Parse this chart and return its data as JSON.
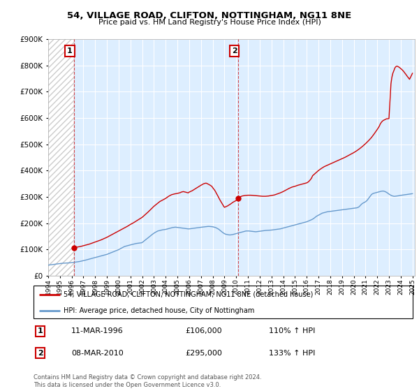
{
  "title": "54, VILLAGE ROAD, CLIFTON, NOTTINGHAM, NG11 8NE",
  "subtitle": "Price paid vs. HM Land Registry's House Price Index (HPI)",
  "legend_line1": "54, VILLAGE ROAD, CLIFTON, NOTTINGHAM, NG11 8NE (detached house)",
  "legend_line2": "HPI: Average price, detached house, City of Nottingham",
  "footnote": "Contains HM Land Registry data © Crown copyright and database right 2024.\nThis data is licensed under the Open Government Licence v3.0.",
  "annotation1_label": "1",
  "annotation1_date": "11-MAR-1996",
  "annotation1_price": "£106,000",
  "annotation1_hpi": "110% ↑ HPI",
  "annotation2_label": "2",
  "annotation2_date": "08-MAR-2010",
  "annotation2_price": "£295,000",
  "annotation2_hpi": "133% ↑ HPI",
  "property_color": "#cc0000",
  "hpi_color": "#6699cc",
  "hpi_fill_color": "#ddeeff",
  "hatch_color": "#cccccc",
  "ylim": [
    0,
    900000
  ],
  "yticks": [
    0,
    100000,
    200000,
    300000,
    400000,
    500000,
    600000,
    700000,
    800000,
    900000
  ],
  "xlim_start": 1994.0,
  "xlim_end": 2025.2,
  "sale1_x": 1996.17,
  "sale2_x": 2010.17,
  "sale1_y": 106000,
  "sale2_y": 295000,
  "hpi_x": [
    1994.0,
    1994.08,
    1994.17,
    1994.25,
    1994.33,
    1994.42,
    1994.5,
    1994.58,
    1994.67,
    1994.75,
    1994.83,
    1994.92,
    1995.0,
    1995.08,
    1995.17,
    1995.25,
    1995.33,
    1995.42,
    1995.5,
    1995.58,
    1995.67,
    1995.75,
    1995.83,
    1995.92,
    1996.0,
    1996.08,
    1996.17,
    1996.25,
    1996.33,
    1996.42,
    1996.5,
    1996.58,
    1996.67,
    1996.75,
    1996.83,
    1996.92,
    1997.0,
    1997.08,
    1997.17,
    1997.25,
    1997.33,
    1997.42,
    1997.5,
    1997.58,
    1997.67,
    1997.75,
    1997.83,
    1997.92,
    1998.0,
    1998.08,
    1998.17,
    1998.25,
    1998.33,
    1998.42,
    1998.5,
    1998.58,
    1998.67,
    1998.75,
    1998.83,
    1998.92,
    1999.0,
    1999.08,
    1999.17,
    1999.25,
    1999.33,
    1999.42,
    1999.5,
    1999.58,
    1999.67,
    1999.75,
    1999.83,
    1999.92,
    2000.0,
    2000.08,
    2000.17,
    2000.25,
    2000.33,
    2000.42,
    2000.5,
    2000.58,
    2000.67,
    2000.75,
    2000.83,
    2000.92,
    2001.0,
    2001.08,
    2001.17,
    2001.25,
    2001.33,
    2001.42,
    2001.5,
    2001.58,
    2001.67,
    2001.75,
    2001.83,
    2001.92,
    2002.0,
    2002.08,
    2002.17,
    2002.25,
    2002.33,
    2002.42,
    2002.5,
    2002.58,
    2002.67,
    2002.75,
    2002.83,
    2002.92,
    2003.0,
    2003.08,
    2003.17,
    2003.25,
    2003.33,
    2003.42,
    2003.5,
    2003.58,
    2003.67,
    2003.75,
    2003.83,
    2003.92,
    2004.0,
    2004.08,
    2004.17,
    2004.25,
    2004.33,
    2004.42,
    2004.5,
    2004.58,
    2004.67,
    2004.75,
    2004.83,
    2004.92,
    2005.0,
    2005.08,
    2005.17,
    2005.25,
    2005.33,
    2005.42,
    2005.5,
    2005.58,
    2005.67,
    2005.75,
    2005.83,
    2005.92,
    2006.0,
    2006.08,
    2006.17,
    2006.25,
    2006.33,
    2006.42,
    2006.5,
    2006.58,
    2006.67,
    2006.75,
    2006.83,
    2006.92,
    2007.0,
    2007.08,
    2007.17,
    2007.25,
    2007.33,
    2007.42,
    2007.5,
    2007.58,
    2007.67,
    2007.75,
    2007.83,
    2007.92,
    2008.0,
    2008.08,
    2008.17,
    2008.25,
    2008.33,
    2008.42,
    2008.5,
    2008.58,
    2008.67,
    2008.75,
    2008.83,
    2008.92,
    2009.0,
    2009.08,
    2009.17,
    2009.25,
    2009.33,
    2009.42,
    2009.5,
    2009.58,
    2009.67,
    2009.75,
    2009.83,
    2009.92,
    2010.0,
    2010.08,
    2010.17,
    2010.25,
    2010.33,
    2010.42,
    2010.5,
    2010.58,
    2010.67,
    2010.75,
    2010.83,
    2010.92,
    2011.0,
    2011.08,
    2011.17,
    2011.25,
    2011.33,
    2011.42,
    2011.5,
    2011.58,
    2011.67,
    2011.75,
    2011.83,
    2011.92,
    2012.0,
    2012.08,
    2012.17,
    2012.25,
    2012.33,
    2012.42,
    2012.5,
    2012.58,
    2012.67,
    2012.75,
    2012.83,
    2012.92,
    2013.0,
    2013.08,
    2013.17,
    2013.25,
    2013.33,
    2013.42,
    2013.5,
    2013.58,
    2013.67,
    2013.75,
    2013.83,
    2013.92,
    2014.0,
    2014.08,
    2014.17,
    2014.25,
    2014.33,
    2014.42,
    2014.5,
    2014.58,
    2014.67,
    2014.75,
    2014.83,
    2014.92,
    2015.0,
    2015.08,
    2015.17,
    2015.25,
    2015.33,
    2015.42,
    2015.5,
    2015.58,
    2015.67,
    2015.75,
    2015.83,
    2015.92,
    2016.0,
    2016.08,
    2016.17,
    2016.25,
    2016.33,
    2016.42,
    2016.5,
    2016.58,
    2016.67,
    2016.75,
    2016.83,
    2016.92,
    2017.0,
    2017.08,
    2017.17,
    2017.25,
    2017.33,
    2017.42,
    2017.5,
    2017.58,
    2017.67,
    2017.75,
    2017.83,
    2017.92,
    2018.0,
    2018.08,
    2018.17,
    2018.25,
    2018.33,
    2018.42,
    2018.5,
    2018.58,
    2018.67,
    2018.75,
    2018.83,
    2018.92,
    2019.0,
    2019.08,
    2019.17,
    2019.25,
    2019.33,
    2019.42,
    2019.5,
    2019.58,
    2019.67,
    2019.75,
    2019.83,
    2019.92,
    2020.0,
    2020.08,
    2020.17,
    2020.25,
    2020.33,
    2020.42,
    2020.5,
    2020.58,
    2020.67,
    2020.75,
    2020.83,
    2020.92,
    2021.0,
    2021.08,
    2021.17,
    2021.25,
    2021.33,
    2021.42,
    2021.5,
    2021.58,
    2021.67,
    2021.75,
    2021.83,
    2021.92,
    2022.0,
    2022.08,
    2022.17,
    2022.25,
    2022.33,
    2022.42,
    2022.5,
    2022.58,
    2022.67,
    2022.75,
    2022.83,
    2022.92,
    2023.0,
    2023.08,
    2023.17,
    2023.25,
    2023.33,
    2023.42,
    2023.5,
    2023.58,
    2023.67,
    2023.75,
    2023.83,
    2023.92,
    2024.0,
    2024.08,
    2024.17,
    2024.25,
    2024.33,
    2024.42,
    2024.5,
    2024.58,
    2024.67,
    2024.75,
    2024.83,
    2024.92,
    2025.0
  ],
  "hpi_y": [
    40000,
    40500,
    41000,
    41500,
    42000,
    42500,
    43000,
    43500,
    44000,
    44500,
    45000,
    45500,
    46000,
    46500,
    47000,
    47200,
    47400,
    47600,
    47800,
    48000,
    48200,
    48400,
    48600,
    49000,
    49500,
    50000,
    50500,
    51000,
    51500,
    52000,
    52500,
    53000,
    53800,
    54600,
    55400,
    56200,
    57000,
    58000,
    59000,
    60000,
    61000,
    62000,
    63000,
    64000,
    65000,
    66000,
    67000,
    68000,
    69000,
    70000,
    71000,
    72000,
    73000,
    74000,
    75000,
    76000,
    77000,
    78000,
    79000,
    80000,
    81000,
    82500,
    84000,
    85500,
    87000,
    88500,
    90000,
    91500,
    93000,
    94500,
    96000,
    97500,
    99000,
    101000,
    103000,
    105000,
    107000,
    109000,
    111000,
    112000,
    113000,
    114000,
    115000,
    116000,
    117000,
    118000,
    119000,
    120000,
    121000,
    122000,
    122500,
    123000,
    123500,
    124000,
    124500,
    125000,
    126000,
    129000,
    132000,
    135000,
    138000,
    141000,
    144000,
    147000,
    150000,
    153000,
    156000,
    159000,
    162000,
    164000,
    166000,
    168000,
    170000,
    171000,
    172000,
    173000,
    174000,
    174500,
    175000,
    175500,
    176000,
    177000,
    178000,
    179000,
    180000,
    181000,
    182000,
    183000,
    183500,
    184000,
    184500,
    184000,
    183500,
    183000,
    182500,
    182000,
    181500,
    181000,
    180500,
    180000,
    179500,
    179000,
    178500,
    178000,
    178000,
    178500,
    179000,
    179500,
    180000,
    180500,
    181000,
    181500,
    182000,
    182500,
    183000,
    183500,
    184000,
    184500,
    185000,
    185500,
    186000,
    186500,
    187000,
    187200,
    187400,
    187200,
    187000,
    186500,
    186000,
    185000,
    184000,
    183000,
    181000,
    179000,
    177000,
    174000,
    171000,
    168000,
    165000,
    162000,
    160000,
    158000,
    157000,
    156000,
    155500,
    155000,
    155000,
    155500,
    156000,
    157000,
    158000,
    159000,
    160000,
    161000,
    162000,
    163000,
    164000,
    165000,
    166000,
    167000,
    168000,
    169000,
    170000,
    170000,
    170000,
    170000,
    169500,
    169000,
    168500,
    168000,
    167500,
    167000,
    167000,
    167500,
    168000,
    168500,
    169000,
    169500,
    170000,
    170500,
    171000,
    171500,
    172000,
    172200,
    172400,
    172600,
    172800,
    173000,
    173500,
    174000,
    174500,
    175000,
    175500,
    176000,
    176500,
    177000,
    177500,
    178000,
    179000,
    180000,
    181000,
    182000,
    183000,
    184000,
    185000,
    186000,
    187000,
    188000,
    189000,
    190000,
    191000,
    192000,
    193000,
    194000,
    195000,
    196000,
    197000,
    198000,
    199000,
    200000,
    201000,
    202000,
    203000,
    204000,
    205000,
    206500,
    208000,
    209500,
    211000,
    213000,
    215000,
    217000,
    220000,
    223000,
    226000,
    228000,
    230000,
    232000,
    234000,
    236000,
    238000,
    239000,
    240000,
    241000,
    242000,
    243000,
    243500,
    244000,
    244500,
    245000,
    245500,
    246000,
    246500,
    247000,
    247500,
    248000,
    248500,
    249000,
    249500,
    250000,
    250500,
    251000,
    251500,
    252000,
    252500,
    253000,
    253500,
    254000,
    254500,
    255000,
    255500,
    256000,
    256500,
    257000,
    257500,
    258000,
    259000,
    261000,
    264000,
    268000,
    272000,
    275000,
    277000,
    279000,
    281000,
    284000,
    288000,
    293000,
    298000,
    303000,
    308000,
    311000,
    313000,
    314000,
    315000,
    316000,
    317000,
    318000,
    319000,
    320000,
    321000,
    321500,
    322000,
    321000,
    320000,
    318000,
    316000,
    313000,
    310000,
    308000,
    306000,
    304000,
    303000,
    302000,
    302000,
    302500,
    303000,
    303500,
    304000,
    305000,
    305500,
    306000,
    306500,
    307000,
    307500,
    308000,
    308500,
    309000,
    309500,
    310000,
    310500,
    311000,
    312000
  ],
  "prop_x": [
    1996.17,
    1996.25,
    1996.5,
    1996.75,
    1997.0,
    1997.25,
    1997.5,
    1997.75,
    1998.0,
    1998.25,
    1998.5,
    1998.75,
    1999.0,
    1999.25,
    1999.5,
    1999.75,
    2000.0,
    2000.25,
    2000.5,
    2000.75,
    2001.0,
    2001.25,
    2001.5,
    2001.75,
    2002.0,
    2002.25,
    2002.5,
    2002.75,
    2003.0,
    2003.25,
    2003.5,
    2003.75,
    2004.0,
    2004.25,
    2004.5,
    2004.75,
    2005.0,
    2005.25,
    2005.33,
    2005.42,
    2005.5,
    2005.58,
    2005.67,
    2005.75,
    2005.83,
    2005.92,
    2006.0,
    2006.25,
    2006.5,
    2006.75,
    2007.0,
    2007.25,
    2007.42,
    2007.5,
    2007.58,
    2007.67,
    2007.75,
    2007.92,
    2008.0,
    2008.08,
    2008.17,
    2008.25,
    2008.33,
    2008.42,
    2008.5,
    2008.58,
    2008.67,
    2008.75,
    2008.83,
    2008.92,
    2009.0,
    2009.25,
    2009.5,
    2009.75,
    2010.0,
    2010.08,
    2010.17,
    2010.17,
    2010.25,
    2010.5,
    2010.75,
    2011.0,
    2011.25,
    2011.5,
    2011.75,
    2012.0,
    2012.25,
    2012.5,
    2012.75,
    2013.0,
    2013.25,
    2013.5,
    2013.75,
    2014.0,
    2014.25,
    2014.5,
    2014.75,
    2015.0,
    2015.25,
    2015.5,
    2015.75,
    2016.0,
    2016.08,
    2016.17,
    2016.25,
    2016.33,
    2016.42,
    2016.5,
    2016.75,
    2017.0,
    2017.25,
    2017.5,
    2017.75,
    2018.0,
    2018.25,
    2018.5,
    2018.75,
    2019.0,
    2019.25,
    2019.5,
    2019.75,
    2020.0,
    2020.25,
    2020.5,
    2020.75,
    2021.0,
    2021.25,
    2021.5,
    2021.75,
    2022.0,
    2022.17,
    2022.25,
    2022.33,
    2022.42,
    2022.5,
    2022.58,
    2022.67,
    2022.75,
    2022.83,
    2022.92,
    2023.0,
    2023.17,
    2023.25,
    2023.33,
    2023.42,
    2023.5,
    2023.58,
    2023.67,
    2023.75,
    2023.83,
    2023.92,
    2024.0,
    2024.08,
    2024.17,
    2024.25,
    2024.33,
    2024.42,
    2024.5,
    2024.58,
    2024.67,
    2024.75,
    2025.0
  ],
  "prop_y": [
    106000,
    107000,
    109000,
    111000,
    114000,
    117000,
    120000,
    124000,
    128000,
    132000,
    136000,
    141000,
    146000,
    152000,
    158000,
    164000,
    170000,
    176000,
    182000,
    188000,
    195000,
    201000,
    208000,
    215000,
    222000,
    232000,
    242000,
    253000,
    264000,
    273000,
    282000,
    288000,
    294000,
    302000,
    308000,
    311000,
    313000,
    316000,
    318000,
    319000,
    320000,
    319000,
    318000,
    317000,
    316000,
    315000,
    318000,
    323000,
    330000,
    337000,
    344000,
    350000,
    352000,
    351000,
    349000,
    347000,
    345000,
    340000,
    335000,
    330000,
    325000,
    319000,
    312000,
    305000,
    298000,
    291000,
    284000,
    278000,
    272000,
    265000,
    260000,
    265000,
    272000,
    280000,
    286000,
    291000,
    295000,
    295000,
    298000,
    303000,
    305000,
    306000,
    306000,
    305000,
    304000,
    303000,
    302000,
    302000,
    303000,
    305000,
    307000,
    311000,
    315000,
    320000,
    326000,
    332000,
    337000,
    340000,
    344000,
    347000,
    350000,
    353000,
    355000,
    358000,
    362000,
    366000,
    372000,
    380000,
    390000,
    400000,
    408000,
    415000,
    420000,
    425000,
    430000,
    435000,
    440000,
    445000,
    450000,
    456000,
    462000,
    468000,
    475000,
    483000,
    492000,
    502000,
    513000,
    525000,
    540000,
    556000,
    568000,
    576000,
    582000,
    587000,
    590000,
    592000,
    594000,
    596000,
    597000,
    597000,
    598000,
    730000,
    755000,
    770000,
    780000,
    790000,
    795000,
    797000,
    796000,
    794000,
    791000,
    788000,
    785000,
    781000,
    777000,
    772000,
    767000,
    762000,
    757000,
    752000,
    747000,
    770000
  ]
}
